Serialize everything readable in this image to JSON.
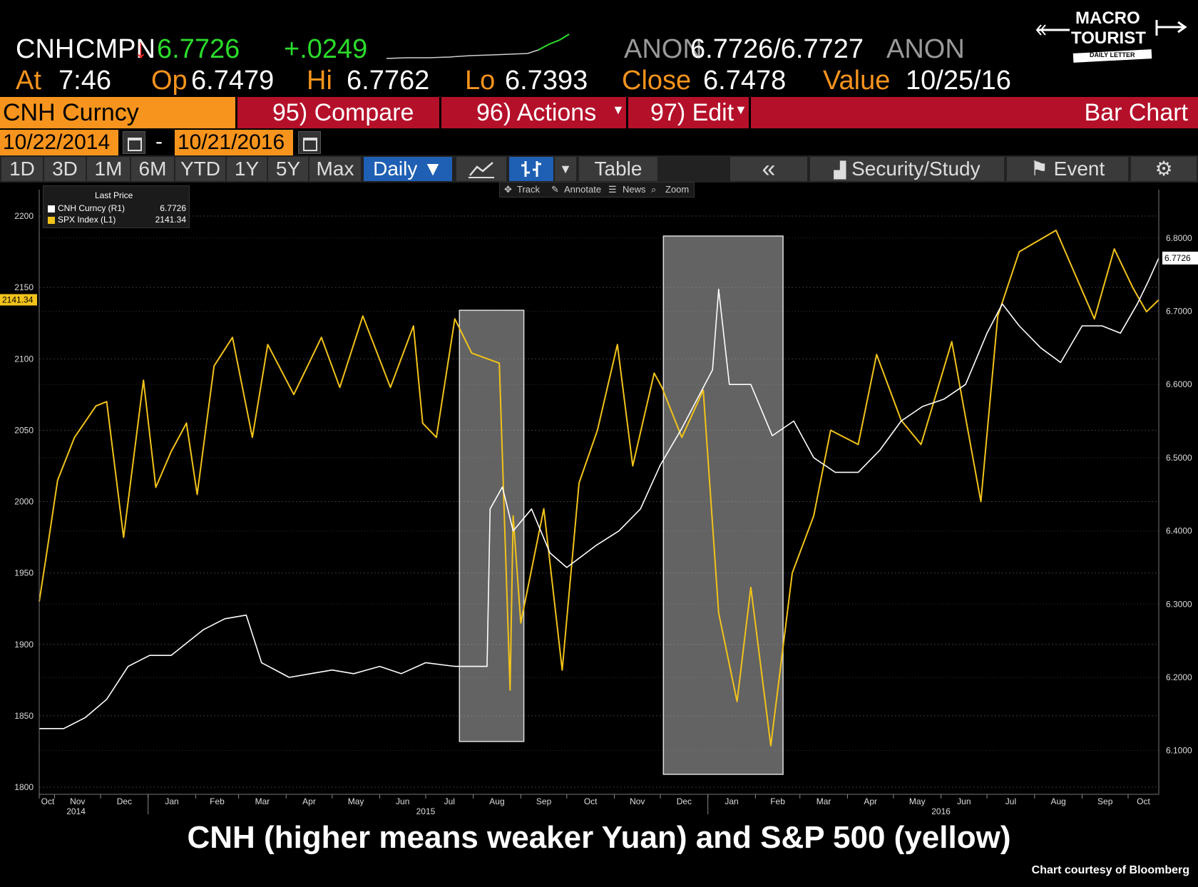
{
  "header": {
    "ticker": "CNH",
    "source": "CMPN",
    "arrow": "↓",
    "last": "6.7726",
    "change": "+.0249",
    "bid_src": "ANON",
    "bid_ask": "6.7726/6.7727",
    "ask_src": "ANON",
    "at_label": "At",
    "at_time": "7:46",
    "op_label": "Op",
    "op": "6.7479",
    "hi_label": "Hi",
    "hi": "6.7762",
    "lo_label": "Lo",
    "lo": "6.7393",
    "close_label": "Close",
    "close": "6.7478",
    "value_label": "Value",
    "value_date": "10/25/16"
  },
  "logo": {
    "line1": "MACRO",
    "line2": "TOURIST",
    "line3": "DAILY LETTER"
  },
  "toolbar": {
    "security": "CNH Curncy",
    "compare": "95) Compare",
    "actions": "96) Actions",
    "edit": "97) Edit",
    "chart_type": "Bar Chart"
  },
  "range": {
    "start": "10/22/2014",
    "dash": "-",
    "end": "10/21/2016"
  },
  "periods": [
    "1D",
    "3D",
    "1M",
    "6M",
    "YTD",
    "1Y",
    "5Y",
    "Max"
  ],
  "frequency": "Daily ▼",
  "table_label": "Table",
  "collapse": "«",
  "security_study": "Security/Study",
  "event": "Event",
  "subtools": {
    "track": "Track",
    "annotate": "Annotate",
    "news": "News",
    "zoom": "Zoom"
  },
  "legend": {
    "title": "Last Price",
    "items": [
      {
        "name": "CNH Curncy (R1)",
        "value": "6.7726",
        "color": "#ffffff"
      },
      {
        "name": "SPX Index (L1)",
        "value": "2141.34",
        "color": "#f2c31a"
      }
    ]
  },
  "chart_data": {
    "type": "line",
    "caption": "CNH (higher means weaker Yuan) and S&P 500 (yellow)",
    "courtesy": "Chart courtesy of Bloomberg",
    "left_axis": {
      "label": "SPX Index",
      "range": [
        1800,
        2200
      ],
      "ticks": [
        1800,
        1850,
        1900,
        1950,
        2000,
        2050,
        2100,
        2150,
        2200
      ],
      "last_value_tag": "2141.34"
    },
    "right_axis": {
      "label": "CNH Curncy",
      "range": [
        6.05,
        6.83
      ],
      "ticks": [
        6.1,
        6.2,
        6.3,
        6.4,
        6.5,
        6.6,
        6.7,
        6.8
      ],
      "last_value_tag": "6.7726"
    },
    "x_months": [
      "Oct",
      "Nov",
      "Dec",
      "Jan",
      "Feb",
      "Mar",
      "Apr",
      "May",
      "Jun",
      "Jul",
      "Aug",
      "Sep",
      "Oct",
      "Nov",
      "Dec",
      "Jan",
      "Feb",
      "Mar",
      "Apr",
      "May",
      "Jun",
      "Jul",
      "Aug",
      "Sep",
      "Oct"
    ],
    "x_years": [
      "2014",
      "2015",
      "2016"
    ],
    "time_range": [
      "2014-10-22",
      "2016-10-21"
    ],
    "series": [
      {
        "name": "SPX Index (L1)",
        "color": "#f2c31a",
        "points": [
          [
            "2014-10-22",
            1930
          ],
          [
            "2014-10-27",
            1965
          ],
          [
            "2014-11-03",
            2015
          ],
          [
            "2014-11-14",
            2045
          ],
          [
            "2014-11-28",
            2067
          ],
          [
            "2014-12-05",
            2070
          ],
          [
            "2014-12-16",
            1975
          ],
          [
            "2014-12-29",
            2085
          ],
          [
            "2015-01-06",
            2010
          ],
          [
            "2015-01-16",
            2035
          ],
          [
            "2015-01-26",
            2055
          ],
          [
            "2015-02-02",
            2005
          ],
          [
            "2015-02-13",
            2095
          ],
          [
            "2015-02-25",
            2115
          ],
          [
            "2015-03-10",
            2045
          ],
          [
            "2015-03-20",
            2110
          ],
          [
            "2015-04-06",
            2075
          ],
          [
            "2015-04-24",
            2115
          ],
          [
            "2015-05-06",
            2080
          ],
          [
            "2015-05-21",
            2130
          ],
          [
            "2015-06-08",
            2080
          ],
          [
            "2015-06-23",
            2123
          ],
          [
            "2015-06-29",
            2055
          ],
          [
            "2015-07-08",
            2045
          ],
          [
            "2015-07-20",
            2128
          ],
          [
            "2015-07-31",
            2104
          ],
          [
            "2015-08-18",
            2097
          ],
          [
            "2015-08-25",
            1868
          ],
          [
            "2015-08-27",
            1990
          ],
          [
            "2015-09-01",
            1915
          ],
          [
            "2015-09-16",
            1995
          ],
          [
            "2015-09-28",
            1882
          ],
          [
            "2015-10-09",
            2013
          ],
          [
            "2015-10-21",
            2050
          ],
          [
            "2015-11-03",
            2110
          ],
          [
            "2015-11-13",
            2025
          ],
          [
            "2015-11-27",
            2090
          ],
          [
            "2015-12-02",
            2080
          ],
          [
            "2015-12-15",
            2045
          ],
          [
            "2015-12-29",
            2078
          ],
          [
            "2016-01-08",
            1922
          ],
          [
            "2016-01-20",
            1860
          ],
          [
            "2016-01-29",
            1940
          ],
          [
            "2016-02-11",
            1829
          ],
          [
            "2016-02-25",
            1950
          ],
          [
            "2016-03-10",
            1990
          ],
          [
            "2016-03-21",
            2050
          ],
          [
            "2016-04-08",
            2040
          ],
          [
            "2016-04-20",
            2103
          ],
          [
            "2016-05-06",
            2057
          ],
          [
            "2016-05-19",
            2040
          ],
          [
            "2016-06-08",
            2112
          ],
          [
            "2016-06-27",
            2000
          ],
          [
            "2016-07-08",
            2130
          ],
          [
            "2016-07-22",
            2175
          ],
          [
            "2016-08-15",
            2190
          ],
          [
            "2016-09-09",
            2128
          ],
          [
            "2016-09-22",
            2177
          ],
          [
            "2016-10-04",
            2150
          ],
          [
            "2016-10-13",
            2133
          ],
          [
            "2016-10-21",
            2141.34
          ]
        ]
      },
      {
        "name": "CNH Curncy (R1)",
        "color": "#ffffff",
        "points": [
          [
            "2014-10-22",
            6.13
          ],
          [
            "2014-11-07",
            6.13
          ],
          [
            "2014-11-21",
            6.145
          ],
          [
            "2014-12-05",
            6.17
          ],
          [
            "2014-12-19",
            6.215
          ],
          [
            "2015-01-02",
            6.23
          ],
          [
            "2015-01-16",
            6.23
          ],
          [
            "2015-02-06",
            6.265
          ],
          [
            "2015-02-20",
            6.28
          ],
          [
            "2015-03-06",
            6.285
          ],
          [
            "2015-03-16",
            6.22
          ],
          [
            "2015-04-03",
            6.2
          ],
          [
            "2015-04-17",
            6.205
          ],
          [
            "2015-05-01",
            6.21
          ],
          [
            "2015-05-15",
            6.205
          ],
          [
            "2015-06-01",
            6.215
          ],
          [
            "2015-06-15",
            6.205
          ],
          [
            "2015-07-01",
            6.22
          ],
          [
            "2015-07-20",
            6.215
          ],
          [
            "2015-08-10",
            6.215
          ],
          [
            "2015-08-12",
            6.43
          ],
          [
            "2015-08-20",
            6.46
          ],
          [
            "2015-08-27",
            6.4
          ],
          [
            "2015-09-08",
            6.43
          ],
          [
            "2015-09-20",
            6.37
          ],
          [
            "2015-10-01",
            6.35
          ],
          [
            "2015-10-20",
            6.38
          ],
          [
            "2015-11-04",
            6.4
          ],
          [
            "2015-11-18",
            6.43
          ],
          [
            "2015-12-01",
            6.49
          ],
          [
            "2015-12-15",
            6.54
          ],
          [
            "2016-01-04",
            6.62
          ],
          [
            "2016-01-08",
            6.73
          ],
          [
            "2016-01-15",
            6.6
          ],
          [
            "2016-01-29",
            6.6
          ],
          [
            "2016-02-12",
            6.53
          ],
          [
            "2016-02-26",
            6.55
          ],
          [
            "2016-03-10",
            6.5
          ],
          [
            "2016-03-24",
            6.48
          ],
          [
            "2016-04-08",
            6.48
          ],
          [
            "2016-04-22",
            6.51
          ],
          [
            "2016-05-06",
            6.55
          ],
          [
            "2016-05-20",
            6.57
          ],
          [
            "2016-06-03",
            6.58
          ],
          [
            "2016-06-17",
            6.6
          ],
          [
            "2016-07-01",
            6.67
          ],
          [
            "2016-07-11",
            6.71
          ],
          [
            "2016-07-22",
            6.68
          ],
          [
            "2016-08-05",
            6.65
          ],
          [
            "2016-08-18",
            6.63
          ],
          [
            "2016-09-01",
            6.68
          ],
          [
            "2016-09-14",
            6.68
          ],
          [
            "2016-09-26",
            6.67
          ],
          [
            "2016-10-07",
            6.71
          ],
          [
            "2016-10-14",
            6.74
          ],
          [
            "2016-10-21",
            6.7726
          ]
        ]
      }
    ],
    "highlight_boxes": [
      {
        "from": "2015-07-23",
        "to": "2015-09-03",
        "label": ""
      },
      {
        "from": "2015-12-03",
        "to": "2016-02-19",
        "label": ""
      }
    ]
  }
}
